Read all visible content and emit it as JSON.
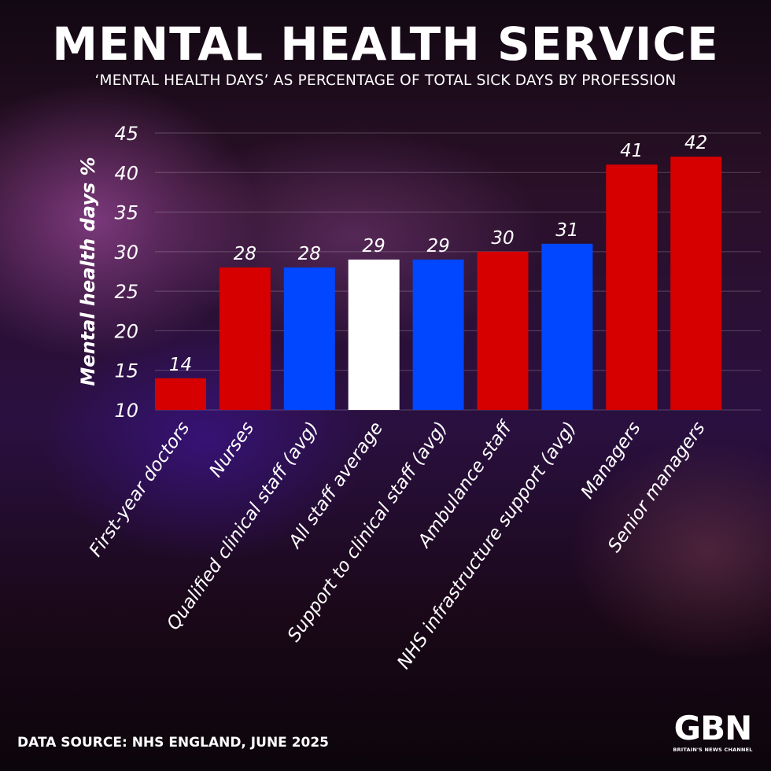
{
  "header": {
    "title": "MENTAL HEALTH SERVICE",
    "subtitle": "‘MENTAL HEALTH DAYS’ AS PERCENTAGE OF TOTAL SICK DAYS BY PROFESSION"
  },
  "footer": {
    "source": "DATA SOURCE: NHS ENGLAND, JUNE 2025",
    "logo_text": "GBN",
    "logo_tagline": "BRITAIN'S NEWS CHANNEL"
  },
  "colors": {
    "red": "#d60000",
    "blue": "#0047ff",
    "white": "#ffffff"
  },
  "chart_data": {
    "type": "bar",
    "title": "MENTAL HEALTH SERVICE",
    "subtitle": "‘MENTAL HEALTH DAYS’ AS PERCENTAGE OF TOTAL SICK DAYS BY PROFESSION",
    "ylabel": "Mental health days %",
    "xlabel": "",
    "ylim": [
      10,
      45
    ],
    "yticks": [
      10,
      15,
      20,
      25,
      30,
      35,
      40,
      45
    ],
    "grid": true,
    "categories": [
      "First-year doctors",
      "Nurses",
      "Qualified clinical staff (avg)",
      "All staff average",
      "Support to clinical staff (avg)",
      "Ambulance staff",
      "NHS infrastructure support (avg)",
      "Managers",
      "Senior managers"
    ],
    "values": [
      14,
      28,
      28,
      29,
      29,
      30,
      31,
      41,
      42
    ],
    "bar_colors": [
      "red",
      "red",
      "blue",
      "white",
      "blue",
      "red",
      "blue",
      "red",
      "red"
    ]
  }
}
